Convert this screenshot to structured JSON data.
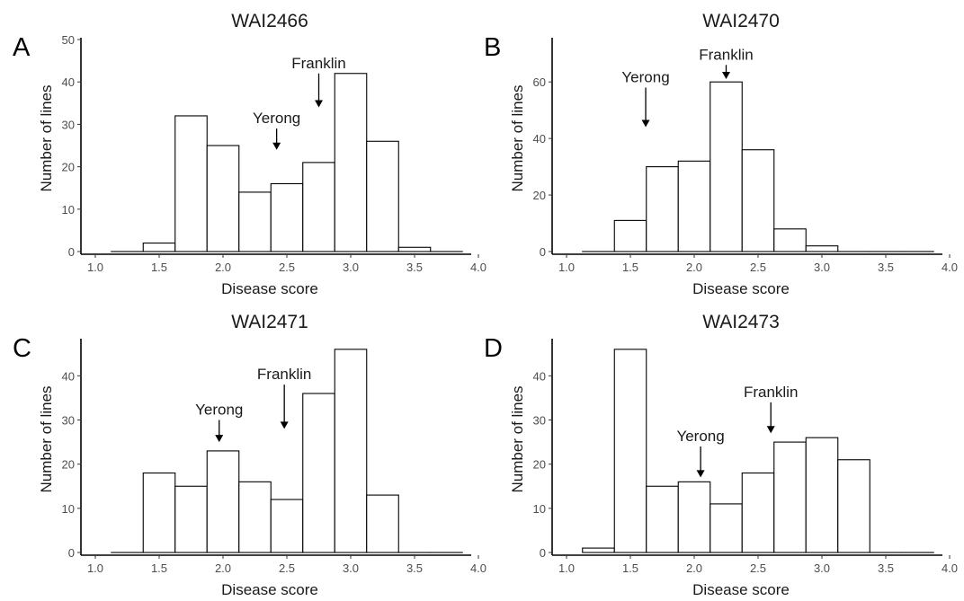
{
  "chart_data": [
    {
      "type": "bar",
      "panel_letter": "A",
      "title": "WAI2466",
      "xlabel": "Disease score",
      "ylabel": "Number of lines",
      "xlim": [
        1.0,
        4.0
      ],
      "ylim": [
        0,
        50
      ],
      "xticks": [
        "1.0",
        "1.5",
        "2.0",
        "2.5",
        "3.0",
        "3.5",
        "4.0"
      ],
      "yticks": [
        "0",
        "10",
        "20",
        "30",
        "40",
        "50"
      ],
      "bins": [
        {
          "x0": 1.125,
          "x1": 1.375,
          "count": 0
        },
        {
          "x0": 1.375,
          "x1": 1.625,
          "count": 2
        },
        {
          "x0": 1.625,
          "x1": 1.875,
          "count": 32
        },
        {
          "x0": 1.875,
          "x1": 2.125,
          "count": 25
        },
        {
          "x0": 2.125,
          "x1": 2.375,
          "count": 14
        },
        {
          "x0": 2.375,
          "x1": 2.625,
          "count": 16
        },
        {
          "x0": 2.625,
          "x1": 2.875,
          "count": 21
        },
        {
          "x0": 2.875,
          "x1": 3.125,
          "count": 42
        },
        {
          "x0": 3.125,
          "x1": 3.375,
          "count": 26
        },
        {
          "x0": 3.375,
          "x1": 3.625,
          "count": 1
        },
        {
          "x0": 3.625,
          "x1": 3.875,
          "count": 0
        }
      ],
      "annotations": [
        {
          "label": "Franklin",
          "x": 2.75,
          "y_arrow_start": 42,
          "y_arrow_end": 34
        },
        {
          "label": "Yerong",
          "x": 2.42,
          "y_arrow_start": 29,
          "y_arrow_end": 24
        }
      ]
    },
    {
      "type": "bar",
      "panel_letter": "B",
      "title": "WAI2470",
      "xlabel": "Disease score",
      "ylabel": "Number of lines",
      "xlim": [
        1.0,
        4.0
      ],
      "ylim": [
        0,
        75
      ],
      "xticks": [
        "1.0",
        "1.5",
        "2.0",
        "2.5",
        "3.0",
        "3.5",
        "4.0"
      ],
      "yticks": [
        "0",
        "20",
        "40",
        "60"
      ],
      "bins": [
        {
          "x0": 1.125,
          "x1": 1.375,
          "count": 0
        },
        {
          "x0": 1.375,
          "x1": 1.625,
          "count": 11
        },
        {
          "x0": 1.625,
          "x1": 1.875,
          "count": 30
        },
        {
          "x0": 1.875,
          "x1": 2.125,
          "count": 32
        },
        {
          "x0": 2.125,
          "x1": 2.375,
          "count": 60
        },
        {
          "x0": 2.375,
          "x1": 2.625,
          "count": 36
        },
        {
          "x0": 2.625,
          "x1": 2.875,
          "count": 8
        },
        {
          "x0": 2.875,
          "x1": 3.125,
          "count": 2
        },
        {
          "x0": 3.125,
          "x1": 3.375,
          "count": 0
        },
        {
          "x0": 3.375,
          "x1": 3.625,
          "count": 0
        },
        {
          "x0": 3.625,
          "x1": 3.875,
          "count": 0
        }
      ],
      "annotations": [
        {
          "label": "Franklin",
          "x": 2.25,
          "y_arrow_start": 66,
          "y_arrow_end": 61
        },
        {
          "label": "Yerong",
          "x": 1.62,
          "y_arrow_start": 58,
          "y_arrow_end": 44
        }
      ]
    },
    {
      "type": "bar",
      "panel_letter": "C",
      "title": "WAI2471",
      "xlabel": "Disease score",
      "ylabel": "Number of lines",
      "xlim": [
        1.0,
        4.0
      ],
      "ylim": [
        0,
        48
      ],
      "xticks": [
        "1.0",
        "1.5",
        "2.0",
        "2.5",
        "3.0",
        "3.5",
        "4.0"
      ],
      "yticks": [
        "0",
        "10",
        "20",
        "30",
        "40"
      ],
      "bins": [
        {
          "x0": 1.125,
          "x1": 1.375,
          "count": 0
        },
        {
          "x0": 1.375,
          "x1": 1.625,
          "count": 18
        },
        {
          "x0": 1.625,
          "x1": 1.875,
          "count": 15
        },
        {
          "x0": 1.875,
          "x1": 2.125,
          "count": 23
        },
        {
          "x0": 2.125,
          "x1": 2.375,
          "count": 16
        },
        {
          "x0": 2.375,
          "x1": 2.625,
          "count": 12
        },
        {
          "x0": 2.625,
          "x1": 2.875,
          "count": 36
        },
        {
          "x0": 2.875,
          "x1": 3.125,
          "count": 46
        },
        {
          "x0": 3.125,
          "x1": 3.375,
          "count": 13
        },
        {
          "x0": 3.375,
          "x1": 3.625,
          "count": 0
        },
        {
          "x0": 3.625,
          "x1": 3.875,
          "count": 0
        }
      ],
      "annotations": [
        {
          "label": "Franklin",
          "x": 2.48,
          "y_arrow_start": 38,
          "y_arrow_end": 28
        },
        {
          "label": "Yerong",
          "x": 1.97,
          "y_arrow_start": 30,
          "y_arrow_end": 25
        }
      ]
    },
    {
      "type": "bar",
      "panel_letter": "D",
      "title": "WAI2473",
      "xlabel": "Disease score",
      "ylabel": "Number of lines",
      "xlim": [
        1.0,
        4.0
      ],
      "ylim": [
        0,
        48
      ],
      "xticks": [
        "1.0",
        "1.5",
        "2.0",
        "2.5",
        "3.0",
        "3.5",
        "4.0"
      ],
      "yticks": [
        "0",
        "10",
        "20",
        "30",
        "40"
      ],
      "bins": [
        {
          "x0": 1.125,
          "x1": 1.375,
          "count": 1
        },
        {
          "x0": 1.375,
          "x1": 1.625,
          "count": 46
        },
        {
          "x0": 1.625,
          "x1": 1.875,
          "count": 15
        },
        {
          "x0": 1.875,
          "x1": 2.125,
          "count": 16
        },
        {
          "x0": 2.125,
          "x1": 2.375,
          "count": 11
        },
        {
          "x0": 2.375,
          "x1": 2.625,
          "count": 18
        },
        {
          "x0": 2.625,
          "x1": 2.875,
          "count": 25
        },
        {
          "x0": 2.875,
          "x1": 3.125,
          "count": 26
        },
        {
          "x0": 3.125,
          "x1": 3.375,
          "count": 21
        },
        {
          "x0": 3.375,
          "x1": 3.625,
          "count": 0
        },
        {
          "x0": 3.625,
          "x1": 3.875,
          "count": 0
        }
      ],
      "annotations": [
        {
          "label": "Franklin",
          "x": 2.6,
          "y_arrow_start": 34,
          "y_arrow_end": 27
        },
        {
          "label": "Yerong",
          "x": 2.05,
          "y_arrow_start": 24,
          "y_arrow_end": 17
        }
      ]
    }
  ]
}
